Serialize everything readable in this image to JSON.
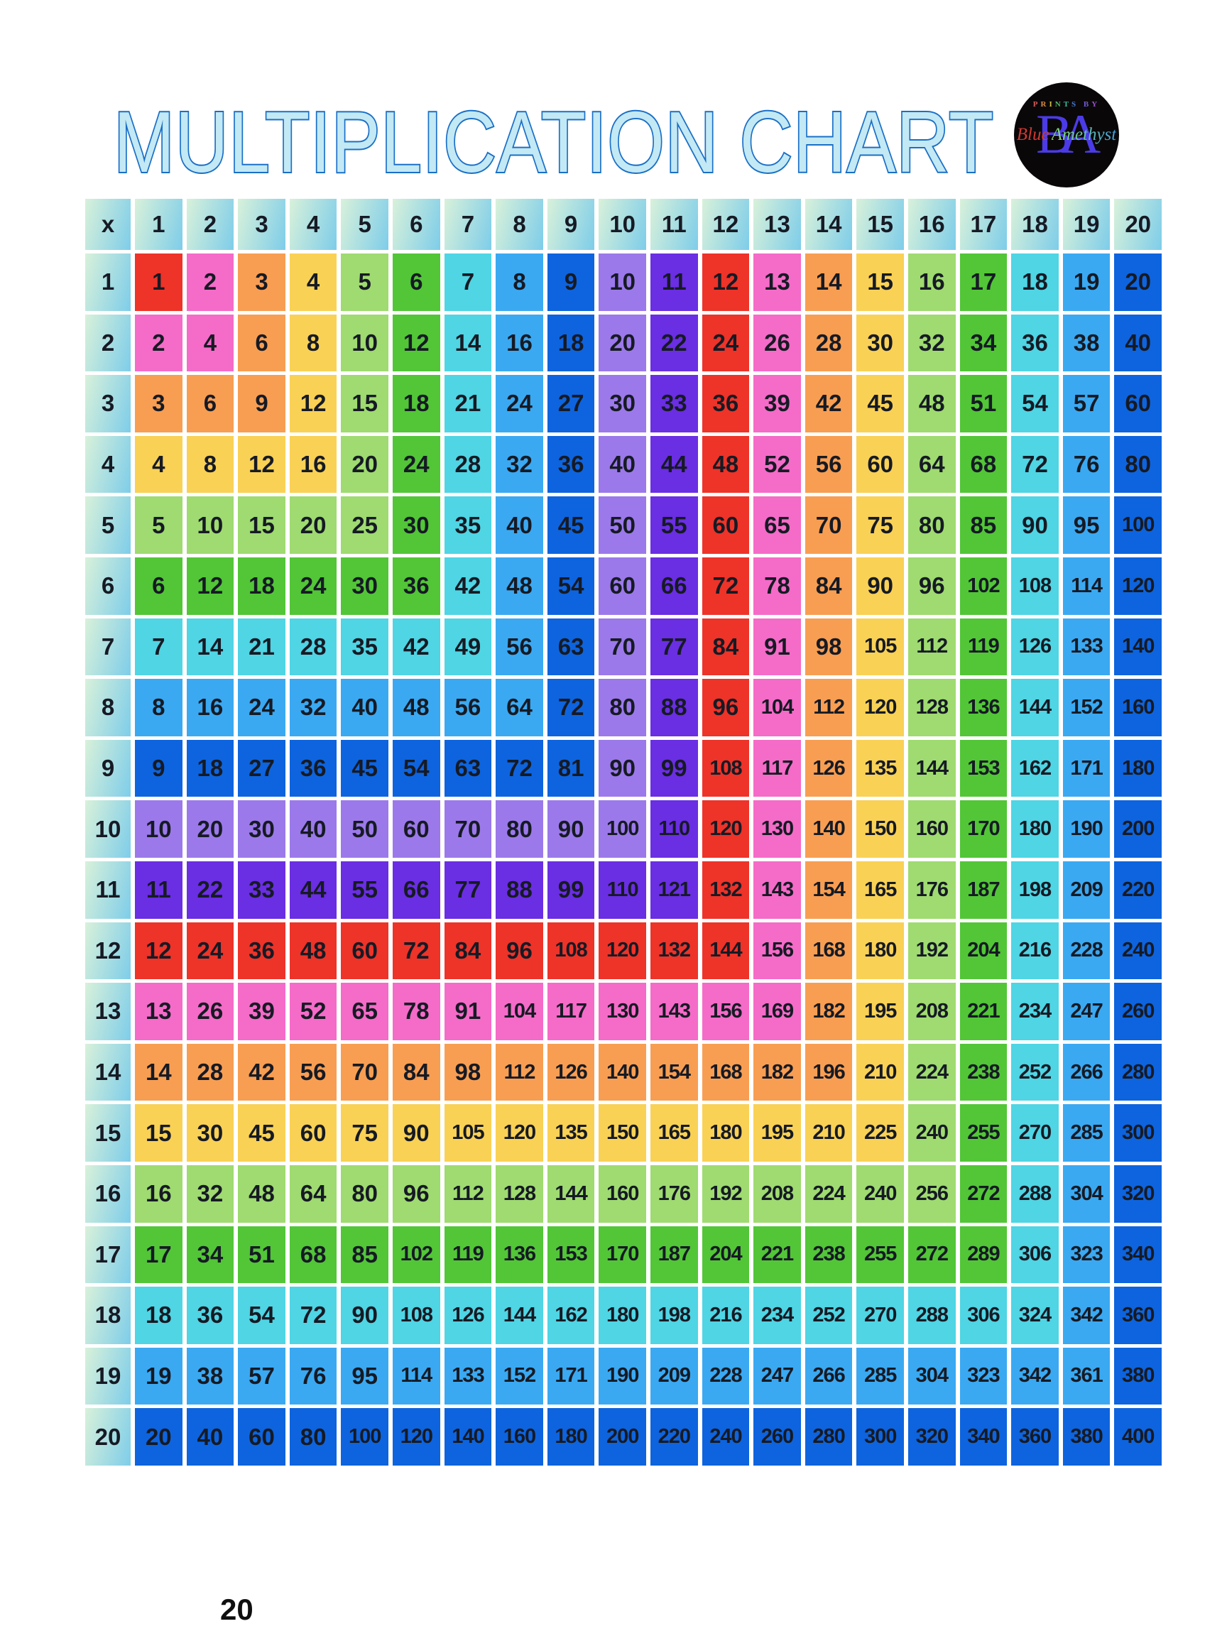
{
  "page": {
    "title": "MULTIPLICATION CHART",
    "page_number": "20",
    "background": "#ffffff"
  },
  "title_style": {
    "fill": "#c3e9f5",
    "stroke": "#1a6fc7"
  },
  "logo": {
    "circle_color": "#0a0709",
    "prints_by_letters": [
      {
        "ch": "P",
        "color": "#d85a5a"
      },
      {
        "ch": "R",
        "color": "#d98a3c"
      },
      {
        "ch": "I",
        "color": "#cfc23e"
      },
      {
        "ch": "N",
        "color": "#58b868"
      },
      {
        "ch": "T",
        "color": "#3dbb9a"
      },
      {
        "ch": "S",
        "color": "#4a7fd6"
      },
      {
        "ch": " ",
        "color": "#000000"
      },
      {
        "ch": "B",
        "color": "#6f5ad8"
      },
      {
        "ch": "Y",
        "color": "#9b4fd0"
      }
    ],
    "monogram": "BA",
    "monogram_color": "#4b3be6",
    "script_first": "Blue",
    "script_second": "Amethyst"
  },
  "table": {
    "corner_label": "x",
    "column_headers": [
      "1",
      "2",
      "3",
      "4",
      "5",
      "6",
      "7",
      "8",
      "9",
      "10",
      "11",
      "12",
      "13",
      "14",
      "15",
      "16",
      "17",
      "18",
      "19",
      "20"
    ],
    "header_gradient": [
      "#d8f1da",
      "#7ecde9"
    ],
    "text_color": "#161a24",
    "cell_palette": [
      "#ee3329",
      "#f56bc8",
      "#f89e52",
      "#f9d155",
      "#9fdb70",
      "#52c637",
      "#4fd5e4",
      "#3aa9f2",
      "#0d64de",
      "#9b79ea",
      "#6a2ee3"
    ],
    "color_rule": "palette[(max(row,col)-1) mod 11]",
    "rows": [
      {
        "header": "1",
        "values": [
          1,
          2,
          3,
          4,
          5,
          6,
          7,
          8,
          9,
          10,
          11,
          12,
          13,
          14,
          15,
          16,
          17,
          18,
          19,
          20
        ]
      },
      {
        "header": "2",
        "values": [
          2,
          4,
          6,
          8,
          10,
          12,
          14,
          16,
          18,
          20,
          22,
          24,
          26,
          28,
          30,
          32,
          34,
          36,
          38,
          40
        ]
      },
      {
        "header": "3",
        "values": [
          3,
          6,
          9,
          12,
          15,
          18,
          21,
          24,
          27,
          30,
          33,
          36,
          39,
          42,
          45,
          48,
          51,
          54,
          57,
          60
        ]
      },
      {
        "header": "4",
        "values": [
          4,
          8,
          12,
          16,
          20,
          24,
          28,
          32,
          36,
          40,
          44,
          48,
          52,
          56,
          60,
          64,
          68,
          72,
          76,
          80
        ]
      },
      {
        "header": "5",
        "values": [
          5,
          10,
          15,
          20,
          25,
          30,
          35,
          40,
          45,
          50,
          55,
          60,
          65,
          70,
          75,
          80,
          85,
          90,
          95,
          100
        ]
      },
      {
        "header": "6",
        "values": [
          6,
          12,
          18,
          24,
          30,
          36,
          42,
          48,
          54,
          60,
          66,
          72,
          78,
          84,
          90,
          96,
          102,
          108,
          114,
          120
        ]
      },
      {
        "header": "7",
        "values": [
          7,
          14,
          21,
          28,
          35,
          42,
          49,
          56,
          63,
          70,
          77,
          84,
          91,
          98,
          105,
          112,
          119,
          126,
          133,
          140
        ]
      },
      {
        "header": "8",
        "values": [
          8,
          16,
          24,
          32,
          40,
          48,
          56,
          64,
          72,
          80,
          88,
          96,
          104,
          112,
          120,
          128,
          136,
          144,
          152,
          160
        ]
      },
      {
        "header": "9",
        "values": [
          9,
          18,
          27,
          36,
          45,
          54,
          63,
          72,
          81,
          90,
          99,
          108,
          117,
          126,
          135,
          144,
          153,
          162,
          171,
          180
        ]
      },
      {
        "header": "10",
        "values": [
          10,
          20,
          30,
          40,
          50,
          60,
          70,
          80,
          90,
          100,
          110,
          120,
          130,
          140,
          150,
          160,
          170,
          180,
          190,
          200
        ]
      },
      {
        "header": "11",
        "values": [
          11,
          22,
          33,
          44,
          55,
          66,
          77,
          88,
          99,
          110,
          121,
          132,
          143,
          154,
          165,
          176,
          187,
          198,
          209,
          220
        ]
      },
      {
        "header": "12",
        "values": [
          12,
          24,
          36,
          48,
          60,
          72,
          84,
          96,
          108,
          120,
          132,
          144,
          156,
          168,
          180,
          192,
          204,
          216,
          228,
          240
        ]
      },
      {
        "header": "13",
        "values": [
          13,
          26,
          39,
          52,
          65,
          78,
          91,
          104,
          117,
          130,
          143,
          156,
          169,
          182,
          195,
          208,
          221,
          234,
          247,
          260
        ]
      },
      {
        "header": "14",
        "values": [
          14,
          28,
          42,
          56,
          70,
          84,
          98,
          112,
          126,
          140,
          154,
          168,
          182,
          196,
          210,
          224,
          238,
          252,
          266,
          280
        ]
      },
      {
        "header": "15",
        "values": [
          15,
          30,
          45,
          60,
          75,
          90,
          105,
          120,
          135,
          150,
          165,
          180,
          195,
          210,
          225,
          240,
          255,
          270,
          285,
          300
        ]
      },
      {
        "header": "16",
        "values": [
          16,
          32,
          48,
          64,
          80,
          96,
          112,
          128,
          144,
          160,
          176,
          192,
          208,
          224,
          240,
          256,
          272,
          288,
          304,
          320
        ]
      },
      {
        "header": "17",
        "values": [
          17,
          34,
          51,
          68,
          85,
          102,
          119,
          136,
          153,
          170,
          187,
          204,
          221,
          238,
          255,
          272,
          289,
          306,
          323,
          340
        ]
      },
      {
        "header": "18",
        "values": [
          18,
          36,
          54,
          72,
          90,
          108,
          126,
          144,
          162,
          180,
          198,
          216,
          234,
          252,
          270,
          288,
          306,
          324,
          342,
          360
        ]
      },
      {
        "header": "19",
        "values": [
          19,
          38,
          57,
          76,
          95,
          114,
          133,
          152,
          171,
          190,
          209,
          228,
          247,
          266,
          285,
          304,
          323,
          342,
          361,
          380
        ]
      },
      {
        "header": "20",
        "values": [
          20,
          40,
          60,
          80,
          100,
          120,
          140,
          160,
          180,
          200,
          220,
          240,
          260,
          280,
          300,
          320,
          340,
          360,
          380,
          400
        ]
      }
    ]
  }
}
